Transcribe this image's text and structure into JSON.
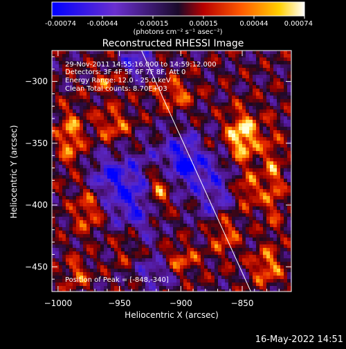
{
  "colorbar": {
    "ticks": [
      "-0.00074",
      "-0.00044",
      "-0.00015",
      "0.00015",
      "0.00044",
      "0.00074"
    ],
    "unit_label": "(photons cm⁻² s⁻¹ asec⁻²)"
  },
  "chart_data": {
    "type": "heatmap",
    "title": "Reconstructed RHESSI Image",
    "xlabel": "Heliocentric X (arcsec)",
    "ylabel": "Heliocentric Y (arcsec)",
    "xlim": [
      -1005,
      -810
    ],
    "ylim": [
      -470,
      -275
    ],
    "xticks": [
      -1000,
      -950,
      -900,
      -850
    ],
    "yticks": [
      -300,
      -350,
      -400,
      -450
    ],
    "zlim": [
      -0.00074,
      0.00074
    ],
    "colormap": "blue-purple-red-yellow-white",
    "limb_line": [
      [
        -932,
        -275
      ],
      [
        -843,
        -470
      ]
    ],
    "peak": [
      -848,
      -340
    ]
  },
  "annotations": {
    "time_range": "29-Nov-2011 14:55:16.000 to 14:59:12.000",
    "detectors": "Detectors: 3F 4F 5F 6F 7F 8F, Att 0",
    "energy_range": "Energy Range: 12.0 - 25.0 keV",
    "clean_counts": "Clean     Total counts: 8.70E+03",
    "peak_position": "Position of Peak = [-848,-340]"
  },
  "timestamp": "16-May-2022 14:51"
}
